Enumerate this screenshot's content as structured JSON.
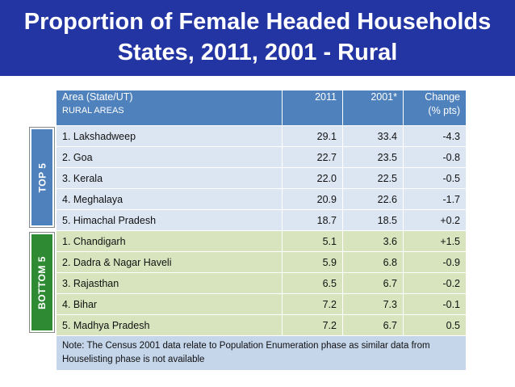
{
  "title": {
    "line1": "Proportion of Female Headed Households",
    "line2": "States, 2011, 2001 - Rural"
  },
  "table": {
    "headers": {
      "area": "Area (State/UT)",
      "area_sub": "RURAL AREAS",
      "y2011": "2011",
      "y2001": "2001*",
      "change": "Change",
      "change_sub": "(% pts)"
    },
    "rows": [
      {
        "area": "1. Lakshadweep",
        "y2011": "29.1",
        "y2001": "33.4",
        "change": "-4.3"
      },
      {
        "area": "2. Goa",
        "y2011": "22.7",
        "y2001": "23.5",
        "change": "-0.8"
      },
      {
        "area": "3. Kerala",
        "y2011": "22.0",
        "y2001": "22.5",
        "change": "-0.5"
      },
      {
        "area": "4. Meghalaya",
        "y2011": "20.9",
        "y2001": "22.6",
        "change": "-1.7"
      },
      {
        "area": "5. Himachal Pradesh",
        "y2011": "18.7",
        "y2001": "18.5",
        "change": "+0.2"
      },
      {
        "area": "1. Chandigarh",
        "y2011": "5.1",
        "y2001": "3.6",
        "change": "+1.5"
      },
      {
        "area": "2. Dadra & Nagar Haveli",
        "y2011": "5.9",
        "y2001": "6.8",
        "change": "-0.9"
      },
      {
        "area": "3. Rajasthan",
        "y2011": "6.5",
        "y2001": "6.7",
        "change": "-0.2"
      },
      {
        "area": "4. Bihar",
        "y2011": "7.2",
        "y2001": "7.3",
        "change": "-0.1"
      },
      {
        "area": "5. Madhya Pradesh",
        "y2011": "7.2",
        "y2001": "6.7",
        "change": "0.5"
      }
    ],
    "note": "Note: The Census 2001 data relate to Population Enumeration phase as similar data from Houselisting phase is not available"
  },
  "side_labels": {
    "top": "TOP 5",
    "bottom": "BOTTOM 5"
  },
  "colors": {
    "banner": "#2334a3",
    "header": "#4f81bd",
    "top_rows": "#dce6f2",
    "bottom_rows": "#d7e4bd",
    "top_label": "#4f81bd",
    "bottom_label": "#2e8b34"
  }
}
